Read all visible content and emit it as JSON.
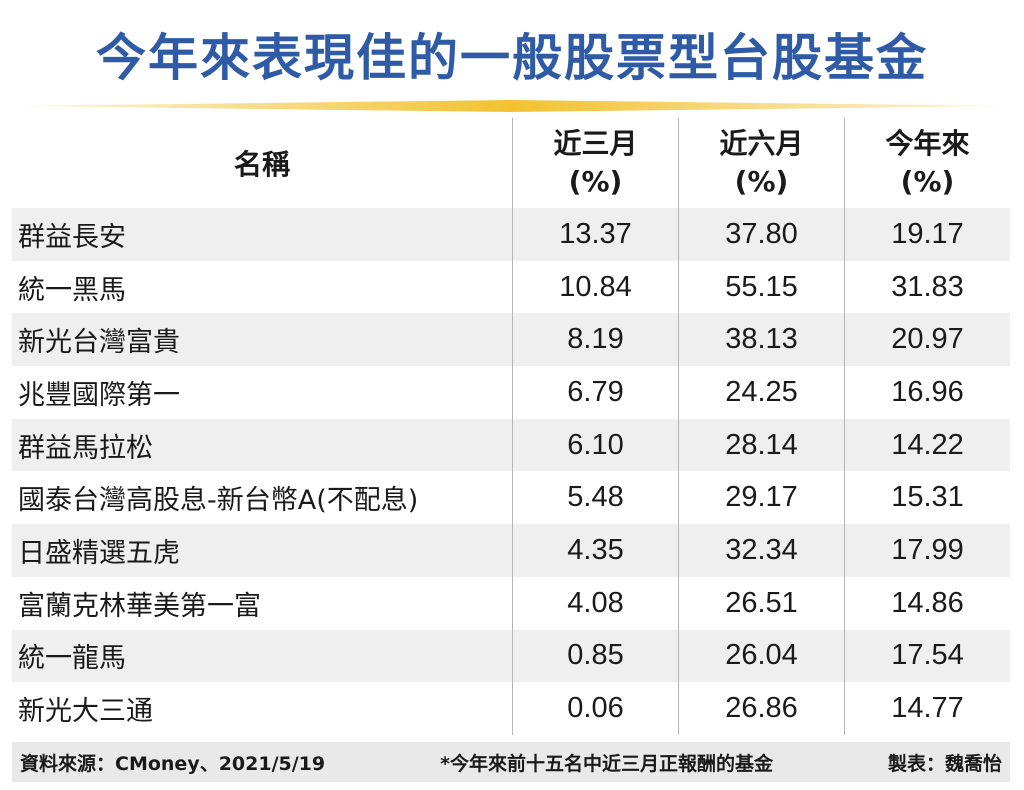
{
  "title": "今年來表現佳的一般股票型台股基金",
  "colors": {
    "title": "#2e5aa6",
    "rule": "#f2c230",
    "shaded_row": "#efefef"
  },
  "table": {
    "headers": {
      "name": "名稱",
      "col1": {
        "line1": "近三月",
        "line2": "(%)"
      },
      "col2": {
        "line1": "近六月",
        "line2": "(%)"
      },
      "col3": {
        "line1": "今年來",
        "line2": "(%)"
      }
    }
  },
  "chart_data": {
    "type": "table",
    "title": "今年來表現佳的一般股票型台股基金",
    "columns": [
      "名稱",
      "近三月(%)",
      "近六月(%)",
      "今年來(%)"
    ],
    "rows": [
      {
        "name": "群益長安",
        "m3": "13.37",
        "m6": "37.80",
        "ytd": "19.17"
      },
      {
        "name": "統一黑馬",
        "m3": "10.84",
        "m6": "55.15",
        "ytd": "31.83"
      },
      {
        "name": "新光台灣富貴",
        "m3": "8.19",
        "m6": "38.13",
        "ytd": "20.97"
      },
      {
        "name": "兆豐國際第一",
        "m3": "6.79",
        "m6": "24.25",
        "ytd": "16.96"
      },
      {
        "name": "群益馬拉松",
        "m3": "6.10",
        "m6": "28.14",
        "ytd": "14.22"
      },
      {
        "name": "國泰台灣高股息-新台幣A(不配息)",
        "m3": "5.48",
        "m6": "29.17",
        "ytd": "15.31"
      },
      {
        "name": "日盛精選五虎",
        "m3": "4.35",
        "m6": "32.34",
        "ytd": "17.99"
      },
      {
        "name": "富蘭克林華美第一富",
        "m3": "4.08",
        "m6": "26.51",
        "ytd": "14.86"
      },
      {
        "name": "統一龍馬",
        "m3": "0.85",
        "m6": "26.04",
        "ytd": "17.54"
      },
      {
        "name": "新光大三通",
        "m3": "0.06",
        "m6": "26.86",
        "ytd": "14.77"
      }
    ]
  },
  "footer": {
    "source": "資料來源：CMoney、2021/5/19",
    "note": "*今年來前十五名中近三月正報酬的基金",
    "credit": "製表：魏喬怡"
  }
}
